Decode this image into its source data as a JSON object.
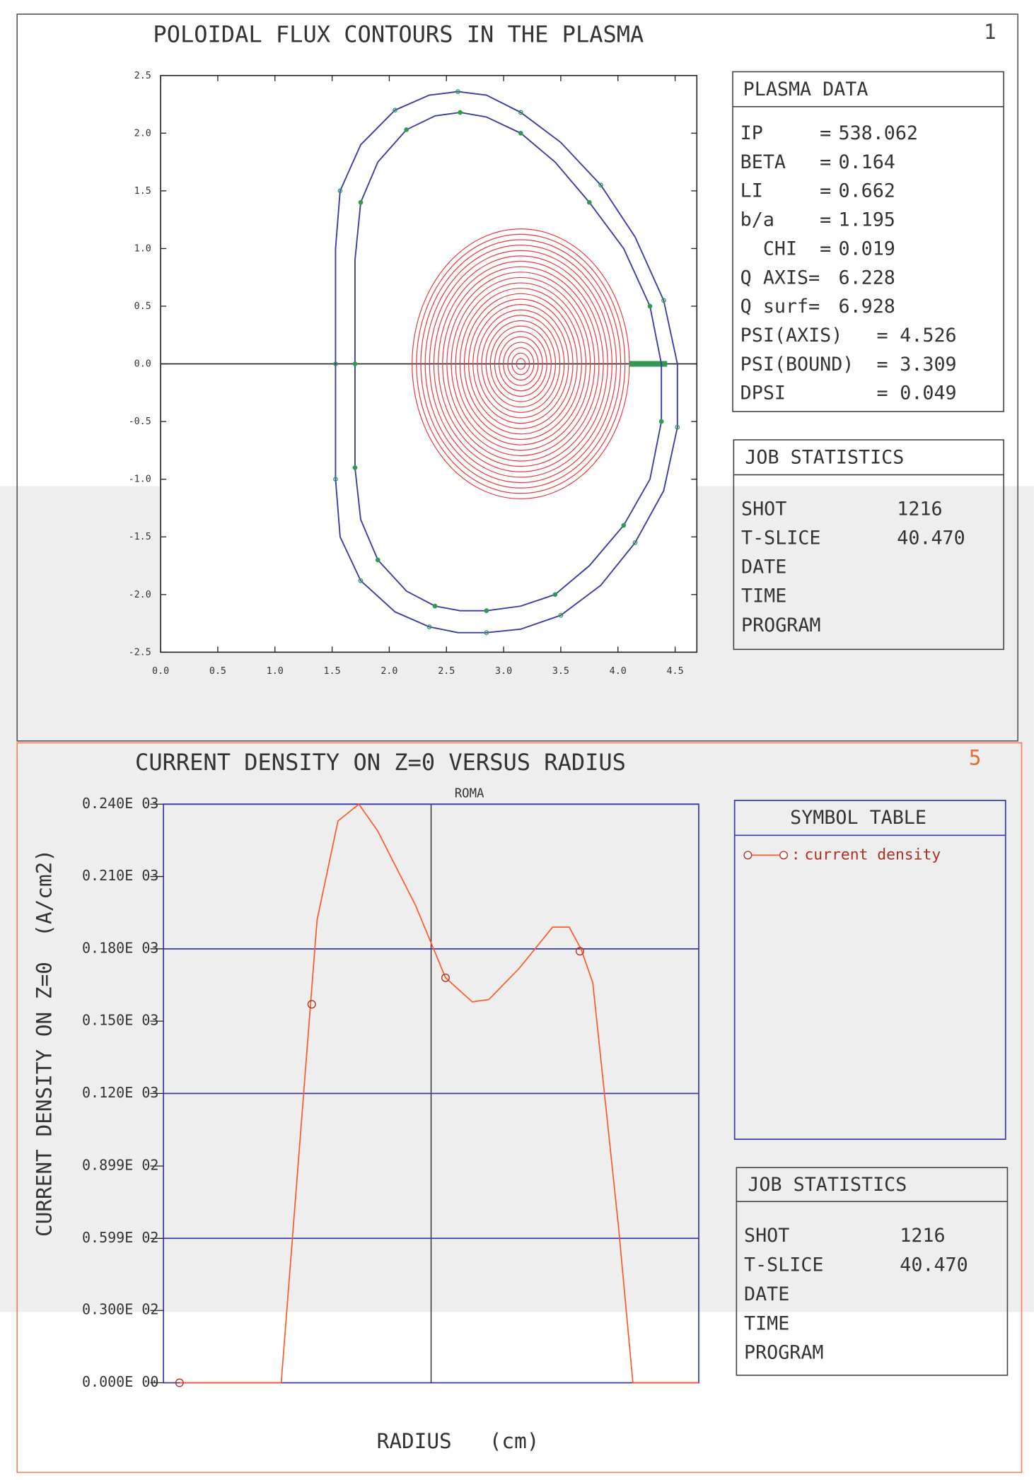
{
  "chart_data": [
    {
      "type": "contour",
      "title": "POLOIDAL FLUX CONTOURS IN THE PLASMA",
      "page_number": "1",
      "xlim": [
        0,
        4.69
      ],
      "ylim": [
        -2.5,
        2.5
      ],
      "xticks": [
        {
          "value": 0,
          "label": "0.0"
        },
        0.5,
        {
          "value": 1,
          "label": "1.0"
        },
        1.5,
        {
          "value": 2,
          "label": "2.0"
        },
        2.5,
        {
          "value": 3,
          "label": "3.0"
        },
        3.5,
        {
          "value": 4,
          "label": "4.0"
        },
        4.5
      ],
      "yticks": [
        2.5,
        {
          "value": 2,
          "label": "2.0"
        },
        1.5,
        {
          "value": 1,
          "label": "1.0"
        },
        0.5,
        {
          "value": 0,
          "label": "0.0"
        },
        -0.5,
        {
          "value": -1,
          "label": "-1.0"
        },
        -1.5,
        {
          "value": -2,
          "label": "-2.0"
        },
        -2.5
      ],
      "series": [
        {
          "color": "#3b3ba6",
          "x": [
            1.53,
            1.53,
            1.57,
            1.75,
            2.05,
            2.35,
            2.6,
            2.85,
            3.15,
            3.5,
            3.85,
            4.15,
            4.4,
            4.52,
            4.52,
            4.4,
            4.15,
            3.85,
            3.5,
            3.15,
            2.85,
            2.6,
            2.35,
            2.05,
            1.75,
            1.57,
            1.53
          ],
          "values": [
            0,
            1.0,
            1.5,
            1.9,
            2.2,
            2.33,
            2.36,
            2.33,
            2.18,
            1.92,
            1.55,
            1.1,
            0.55,
            0,
            -0.55,
            -1.1,
            -1.55,
            -1.92,
            -2.18,
            -2.3,
            -2.33,
            -2.33,
            -2.28,
            -2.15,
            -1.88,
            -1.5,
            -1.0
          ]
        },
        {
          "color": "#3b3ba6",
          "x": [
            1.7,
            1.7,
            1.75,
            1.9,
            2.15,
            2.4,
            2.62,
            2.85,
            3.15,
            3.45,
            3.75,
            4.05,
            4.28,
            4.38,
            4.38,
            4.28,
            4.05,
            3.75,
            3.45,
            3.15,
            2.85,
            2.62,
            2.4,
            2.15,
            1.9,
            1.75,
            1.7
          ],
          "values": [
            0,
            0.9,
            1.4,
            1.75,
            2.03,
            2.15,
            2.18,
            2.14,
            2.0,
            1.75,
            1.4,
            1.0,
            0.5,
            0,
            -0.5,
            -1.0,
            -1.4,
            -1.75,
            -2.0,
            -2.1,
            -2.14,
            -2.14,
            -2.1,
            -1.97,
            -1.7,
            -1.35,
            -0.9
          ]
        }
      ],
      "marker_color": "#2f9a50",
      "contour_color": "#f0383c",
      "plasma_center": {
        "x": 3.15,
        "z": 0
      },
      "plasma_semi_axes": {
        "x": 0.95,
        "z": 1.17
      },
      "flux_contours": [
        1.0,
        0.96,
        0.92,
        0.88,
        0.84,
        0.8,
        0.76,
        0.72,
        0.68,
        0.64,
        0.6,
        0.56,
        0.52,
        0.48,
        0.44,
        0.4,
        0.36,
        0.32,
        0.28,
        0.24,
        0.2,
        0.16,
        0.12,
        0.08,
        0.04
      ],
      "plasma_data": {
        "title": "PLASMA DATA",
        "rows": [
          {
            "label": "IP     =",
            "value": "538.062"
          },
          {
            "label": "BETA   =",
            "value": "0.164"
          },
          {
            "label": "LI     =",
            "value": "0.662"
          },
          {
            "label": "b/a    =",
            "value": "1.195"
          },
          {
            "label": "  CHI  =",
            "value": "0.019"
          },
          {
            "label": "Q AXIS=",
            "value": "6.228"
          },
          {
            "label": "Q surf=",
            "value": "6.928"
          },
          {
            "label": "PSI(AXIS)   =",
            "value": "4.526"
          },
          {
            "label": "PSI(BOUND)  =",
            "value": "3.309"
          },
          {
            "label": "DPSI        =",
            "value": "0.049"
          }
        ]
      },
      "job_statistics": {
        "title": "JOB STATISTICS",
        "rows": [
          {
            "label": "SHOT",
            "value": "1216"
          },
          {
            "label": "T-SLICE",
            "value": "40.470"
          },
          {
            "label": "DATE"
          },
          {
            "label": "TIME"
          },
          {
            "label": "PROGRAM"
          }
        ]
      }
    },
    {
      "type": "line",
      "title": "CURRENT DENSITY ON Z=0 VERSUS RADIUS",
      "page_number": "5",
      "annotation": "ROMA",
      "x_label": "RADIUS   (cm)",
      "y_label": "CURRENT DENSITY ON Z=0  (A/cm2)",
      "xlim": [
        0,
        1
      ],
      "ylim": [
        0,
        240
      ],
      "yticks": [
        {
          "value": 0,
          "label": "0.000E 00"
        },
        {
          "value": 30,
          "label": "0.300E 02"
        },
        {
          "value": 59.9,
          "label": "0.599E 02"
        },
        {
          "value": 89.9,
          "label": "0.899E 02"
        },
        {
          "value": 120,
          "label": "0.120E 03"
        },
        {
          "value": 150,
          "label": "0.150E 03"
        },
        {
          "value": 180,
          "label": "0.180E 03"
        },
        {
          "value": 210,
          "label": "0.210E 03"
        },
        {
          "value": 240,
          "label": "0.240E 03"
        }
      ],
      "grid_every": 2,
      "frame_color": "#3a3aaa",
      "series": [
        {
          "name": "current density",
          "color": "#ff5a2a",
          "x": [
            0.03,
            0.22,
            0.287,
            0.326,
            0.365,
            0.4,
            0.471,
            0.527,
            0.577,
            0.608,
            0.665,
            0.727,
            0.758,
            0.78,
            0.802,
            0.85,
            0.877,
            1.0
          ],
          "values": [
            0,
            0,
            192,
            233,
            240,
            229,
            198,
            168,
            158,
            159,
            172,
            189,
            189,
            180,
            166,
            65,
            0,
            0
          ],
          "markers": {
            "x": [
              0.03,
              0.277,
              0.527,
              0.778
            ],
            "values": [
              0,
              157,
              168,
              179
            ]
          }
        }
      ],
      "legend_title": "SYMBOL TABLE",
      "job_statistics": {
        "title": "JOB STATISTICS",
        "rows": [
          {
            "label": "SHOT",
            "value": "1216"
          },
          {
            "label": "T-SLICE",
            "value": "40.470"
          },
          {
            "label": "DATE"
          },
          {
            "label": "TIME"
          },
          {
            "label": "PROGRAM"
          }
        ]
      }
    }
  ]
}
